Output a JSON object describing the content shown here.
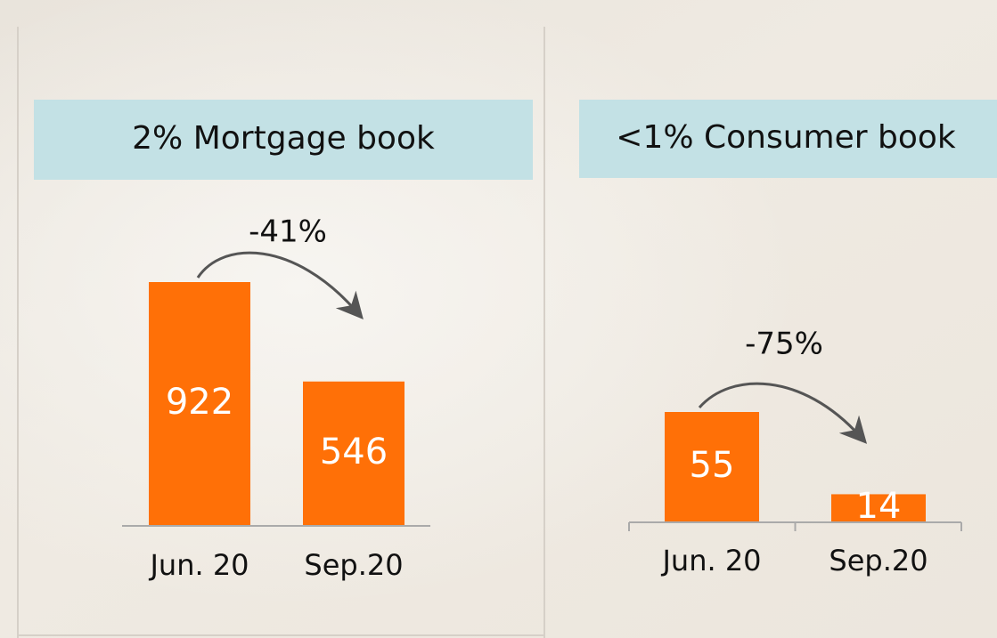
{
  "chart_data": [
    {
      "type": "bar",
      "title": "2% Mortgage book",
      "annotation": "-41%",
      "categories": [
        "Jun. 20",
        "Sep.20"
      ],
      "values": [
        922,
        546
      ],
      "color": "#ff7007"
    },
    {
      "type": "bar",
      "title": "<1% Consumer book",
      "annotation": "-75%",
      "categories": [
        "Jun. 20",
        "Sep.20"
      ],
      "values": [
        55,
        14
      ],
      "color": "#ff7007"
    }
  ]
}
